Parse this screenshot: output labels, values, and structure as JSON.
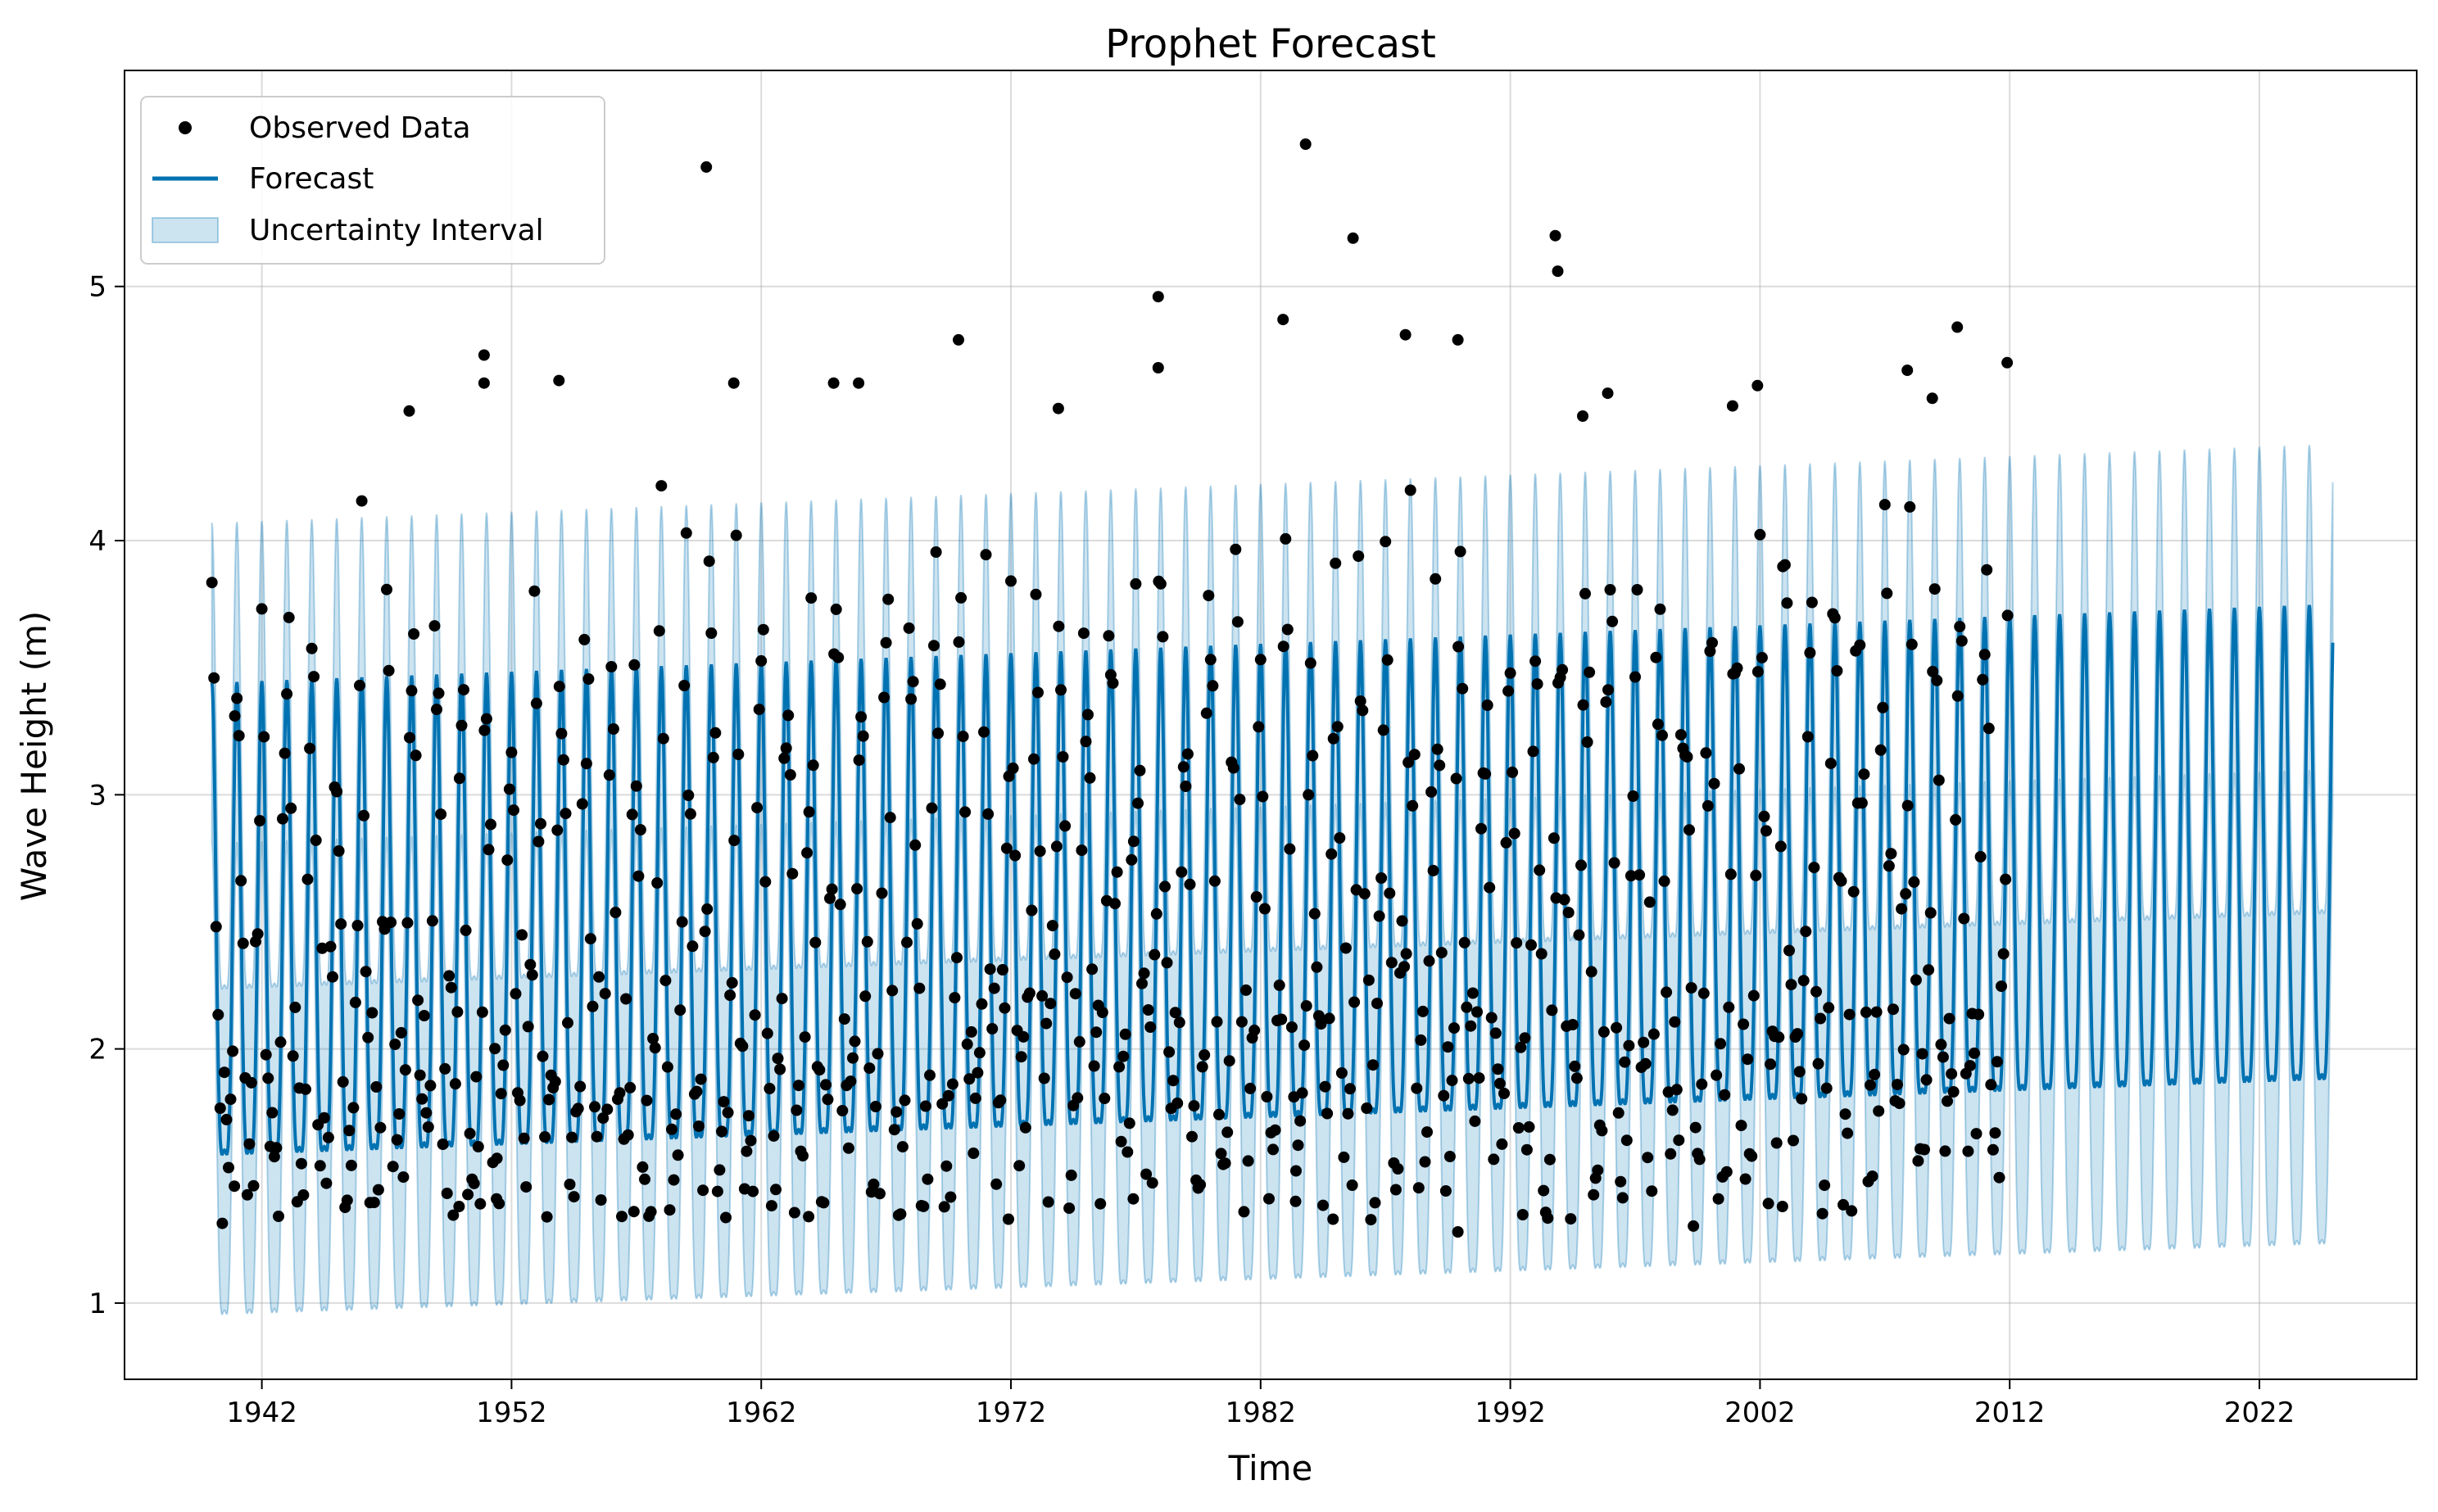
{
  "chart_data": {
    "type": "line",
    "title": "Prophet Forecast",
    "xlabel": "Time",
    "ylabel": "Wave Height (m)",
    "xlim": [
      1936.5,
      2028.3
    ],
    "ylim": [
      0.7,
      5.85
    ],
    "x_ticks": [
      "1942",
      "1952",
      "1962",
      "1972",
      "1982",
      "1992",
      "2002",
      "2012",
      "2022"
    ],
    "y_ticks": [
      "1",
      "2",
      "3",
      "4",
      "5"
    ],
    "grid": true,
    "legend_position": "top-left",
    "legend": [
      "Observed Data",
      "Forecast",
      "Uncertainty Interval"
    ],
    "colors": {
      "forecast": "#0072B2",
      "band": "#0072B2",
      "observed": "#000000"
    },
    "forecast": {
      "start_year": 1940.0,
      "end_year": 2024.95,
      "period_years": 1,
      "peak_start": 3.44,
      "peak_end": 3.75,
      "trough_start": 1.6,
      "trough_end": 1.9,
      "band_upper_start": 4.07,
      "band_upper_end": 4.38,
      "band_lower_start": 0.97,
      "band_lower_end": 1.25
    },
    "observed": {
      "start_year": 1940.0,
      "end_year": 2012.0,
      "count": 864,
      "extremes": [
        {
          "x": 1959.8,
          "y": 5.47
        },
        {
          "x": 1983.8,
          "y": 5.56
        },
        {
          "x": 1985.7,
          "y": 5.19
        },
        {
          "x": 1993.8,
          "y": 5.2
        },
        {
          "x": 1993.9,
          "y": 5.06
        },
        {
          "x": 1977.9,
          "y": 4.96
        },
        {
          "x": 1982.9,
          "y": 4.87
        },
        {
          "x": 2009.9,
          "y": 4.84
        },
        {
          "x": 1987.8,
          "y": 4.81
        },
        {
          "x": 1989.9,
          "y": 4.79
        },
        {
          "x": 1969.9,
          "y": 4.79
        },
        {
          "x": 1950.9,
          "y": 4.73
        },
        {
          "x": 2011.9,
          "y": 4.7
        },
        {
          "x": 1977.9,
          "y": 4.68
        },
        {
          "x": 2007.9,
          "y": 4.67
        },
        {
          "x": 1950.9,
          "y": 4.62
        },
        {
          "x": 1953.9,
          "y": 4.63
        },
        {
          "x": 1964.9,
          "y": 4.62
        },
        {
          "x": 1965.9,
          "y": 4.62
        },
        {
          "x": 1960.9,
          "y": 4.62
        },
        {
          "x": 2001.9,
          "y": 4.61
        },
        {
          "x": 1995.9,
          "y": 4.58
        },
        {
          "x": 2008.9,
          "y": 4.56
        },
        {
          "x": 2000.9,
          "y": 4.53
        },
        {
          "x": 1973.9,
          "y": 4.52
        },
        {
          "x": 1947.9,
          "y": 4.51
        },
        {
          "x": 1994.9,
          "y": 4.49
        },
        {
          "x": 1940.9,
          "y": 1.46
        },
        {
          "x": 1956.9,
          "y": 1.36
        },
        {
          "x": 1971.9,
          "y": 1.33
        },
        {
          "x": 1963.9,
          "y": 1.34
        },
        {
          "x": 1989.9,
          "y": 1.28
        },
        {
          "x": 1984.9,
          "y": 1.33
        },
        {
          "x": 1983.4,
          "y": 1.4
        },
        {
          "x": 2002.9,
          "y": 1.38
        },
        {
          "x": 1976.9,
          "y": 1.41
        },
        {
          "x": 1951.4,
          "y": 1.41
        },
        {
          "x": 1949.9,
          "y": 1.38
        }
      ]
    }
  }
}
